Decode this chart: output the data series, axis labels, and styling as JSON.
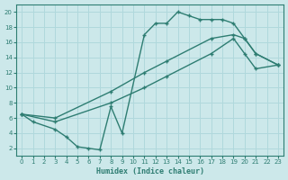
{
  "xlabel": "Humidex (Indice chaleur)",
  "bg_color": "#cce8ea",
  "grid_color": "#b0d8dc",
  "line_color": "#2e7d72",
  "xlim": [
    -0.5,
    23.5
  ],
  "ylim": [
    1,
    21
  ],
  "xticks": [
    0,
    1,
    2,
    3,
    4,
    5,
    6,
    7,
    8,
    9,
    10,
    11,
    12,
    13,
    14,
    15,
    16,
    17,
    18,
    19,
    20,
    21,
    22,
    23
  ],
  "yticks": [
    2,
    4,
    6,
    8,
    10,
    12,
    14,
    16,
    18,
    20
  ],
  "curve1_x": [
    0,
    1,
    3,
    4,
    5,
    6,
    7,
    8,
    9,
    11,
    12,
    13,
    14,
    15,
    16,
    17,
    18,
    19,
    20,
    21,
    23
  ],
  "curve1_y": [
    6.5,
    5.5,
    4.5,
    3.5,
    2.2,
    2.0,
    1.8,
    7.5,
    4.0,
    17.0,
    18.5,
    18.5,
    20.0,
    19.5,
    19.0,
    19.0,
    19.0,
    18.5,
    16.5,
    14.5,
    13.0
  ],
  "curve2_x": [
    0,
    3,
    8,
    11,
    13,
    17,
    19,
    20,
    21,
    23
  ],
  "curve2_y": [
    6.5,
    6.0,
    9.5,
    12.0,
    13.5,
    16.5,
    17.0,
    16.5,
    14.5,
    13.0
  ],
  "curve3_x": [
    0,
    3,
    8,
    11,
    13,
    17,
    19,
    20,
    21,
    23
  ],
  "curve3_y": [
    6.5,
    5.5,
    8.0,
    10.0,
    11.5,
    14.5,
    16.5,
    14.5,
    12.5,
    13.0
  ]
}
